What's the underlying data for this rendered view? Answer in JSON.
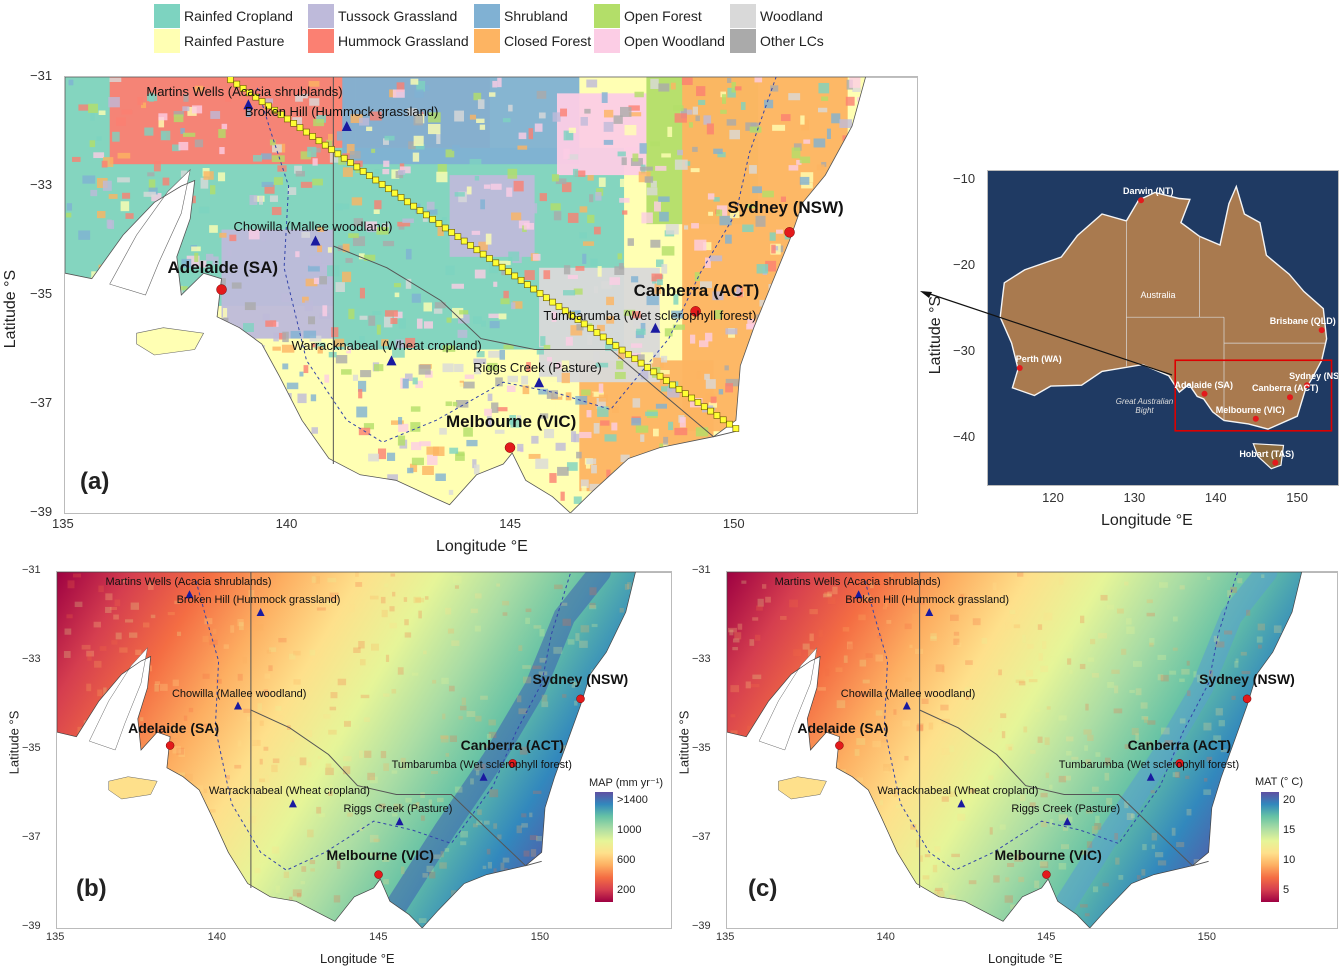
{
  "legend": [
    {
      "label": "Rainfed Cropland",
      "color": "#7dd3c0"
    },
    {
      "label": "Rainfed Pasture",
      "color": "#ffffb3"
    },
    {
      "label": "Tussock Grassland",
      "color": "#bebada"
    },
    {
      "label": "Hummock Grassland",
      "color": "#fb8072"
    },
    {
      "label": "Shrubland",
      "color": "#80b1d3"
    },
    {
      "label": "Closed Forest",
      "color": "#fdb462"
    },
    {
      "label": "Open Forest",
      "color": "#b3de69"
    },
    {
      "label": "Open Woodland",
      "color": "#fccde5"
    },
    {
      "label": "Woodland",
      "color": "#d9d9d9"
    },
    {
      "label": "Other LCs",
      "color": "#aaaaaa"
    }
  ],
  "panels": {
    "a": {
      "tag": "(a)",
      "xlabel": "Longitude °E",
      "ylabel": "Latitude °S"
    },
    "b": {
      "tag": "(b)",
      "xlabel": "Longitude °E",
      "ylabel": "Latitude °S",
      "colorbar_title": "MAP (mm yr⁻¹)",
      "colorbar_ticks": [
        ">1400",
        "1000",
        "600",
        "200"
      ]
    },
    "c": {
      "tag": "(c)",
      "xlabel": "Longitude °E",
      "ylabel": "Latitude °S",
      "colorbar_title": "MAT (° C)",
      "colorbar_ticks": [
        "20",
        "15",
        "10",
        "5"
      ]
    },
    "inset": {
      "xlabel": "Longitude °E",
      "ylabel": "Latitude °S",
      "country": "Australia",
      "sea": "Great Australian Bight"
    }
  },
  "main_axes": {
    "x_ticks": [
      "135",
      "140",
      "145",
      "150"
    ],
    "y_ticks": [
      "−31",
      "−33",
      "−35",
      "−37",
      "−39"
    ]
  },
  "inset_axes": {
    "x_ticks": [
      "120",
      "130",
      "140",
      "150"
    ],
    "y_ticks": [
      "−10",
      "−20",
      "−30",
      "−40"
    ]
  },
  "sites": [
    {
      "name": "Martins Wells (Acacia shrublands)",
      "lon": 139.1,
      "lat": -31.5
    },
    {
      "name": "Broken Hill (Hummock grassland)",
      "lon": 141.3,
      "lat": -31.9
    },
    {
      "name": "Chowilla (Mallee woodland)",
      "lon": 140.6,
      "lat": -34.0
    },
    {
      "name": "Tumbarumba (Wet sclerophyll forest)",
      "lon": 148.2,
      "lat": -35.6
    },
    {
      "name": "Warracknabeal (Wheat cropland)",
      "lon": 142.3,
      "lat": -36.2
    },
    {
      "name": "Riggs Creek (Pasture)",
      "lon": 145.6,
      "lat": -36.6
    }
  ],
  "cities": [
    {
      "name": "Sydney (NSW)",
      "lon": 151.2,
      "lat": -33.85
    },
    {
      "name": "Adelaide (SA)",
      "lon": 138.5,
      "lat": -34.9
    },
    {
      "name": "Canberra (ACT)",
      "lon": 149.1,
      "lat": -35.3
    },
    {
      "name": "Melbourne (VIC)",
      "lon": 144.95,
      "lat": -37.8
    }
  ],
  "inset_cities": [
    "Darwin (NT)",
    "Brisbane (QLD)",
    "Perth (WA)",
    "Adelaide (SA)",
    "Sydney (NSW)",
    "Canberra (ACT)",
    "Melbourne (VIC)",
    "Hobart (TAS)"
  ],
  "colors": {
    "map_a_bg": "#ffffb3",
    "map_b_gradient": [
      "#9e0142",
      "#d53e4f",
      "#f46d43",
      "#fdae61",
      "#fee08b",
      "#e6f598",
      "#abdda4",
      "#66c2a5",
      "#3288bd",
      "#5e4fa2"
    ],
    "site_marker": "#1a1aa0",
    "city_marker": "#e31a1c",
    "transect": "#ffff33"
  }
}
